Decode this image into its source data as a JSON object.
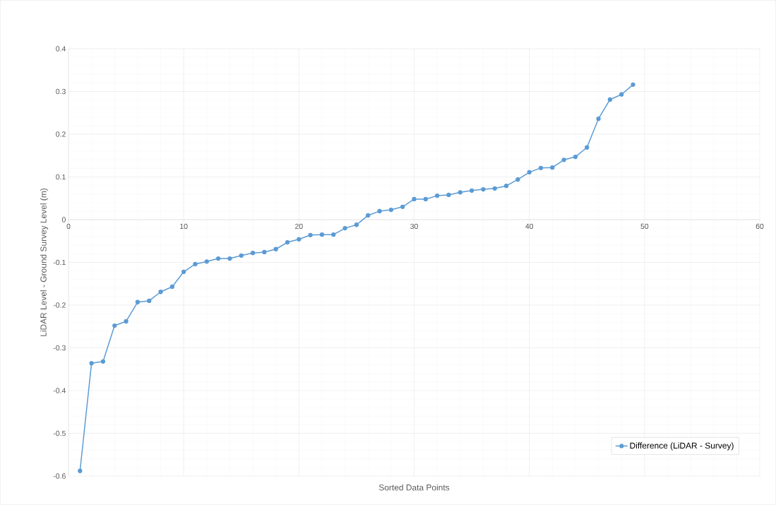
{
  "chart_data": {
    "type": "line",
    "xlabel": "Sorted Data Points",
    "ylabel": "LiDAR Level - Ground Survey Level (m)",
    "x": [
      1,
      2,
      3,
      4,
      5,
      6,
      7,
      8,
      9,
      10,
      11,
      12,
      13,
      14,
      15,
      16,
      17,
      18,
      19,
      20,
      21,
      22,
      23,
      24,
      25,
      26,
      27,
      28,
      29,
      30,
      31,
      32,
      33,
      34,
      35,
      36,
      37,
      38,
      39,
      40,
      41,
      42,
      43,
      44,
      45,
      46,
      47,
      48,
      49
    ],
    "series": [
      {
        "name": "Difference (LiDAR - Survey)",
        "color": "#5b9bd5",
        "values": [
          -0.588,
          -0.336,
          -0.332,
          -0.248,
          -0.238,
          -0.193,
          -0.19,
          -0.169,
          -0.157,
          -0.122,
          -0.104,
          -0.098,
          -0.091,
          -0.091,
          -0.084,
          -0.078,
          -0.076,
          -0.069,
          -0.053,
          -0.046,
          -0.036,
          -0.035,
          -0.035,
          -0.02,
          -0.012,
          0.01,
          0.02,
          0.023,
          0.03,
          0.048,
          0.048,
          0.056,
          0.058,
          0.064,
          0.068,
          0.071,
          0.073,
          0.079,
          0.094,
          0.111,
          0.121,
          0.122,
          0.14,
          0.147,
          0.169,
          0.236,
          0.281,
          0.293,
          0.316
        ]
      }
    ],
    "xlim": [
      0,
      60
    ],
    "xticks": [
      0,
      10,
      20,
      30,
      40,
      50,
      60
    ],
    "ylim": [
      -0.6,
      0.4
    ],
    "yticks": [
      -0.6,
      -0.5,
      -0.4,
      -0.3,
      -0.2,
      -0.1,
      0,
      0.1,
      0.2,
      0.3,
      0.4
    ],
    "grid": true,
    "legend": "bottom right",
    "marker": "circle",
    "line_style": "solid"
  }
}
